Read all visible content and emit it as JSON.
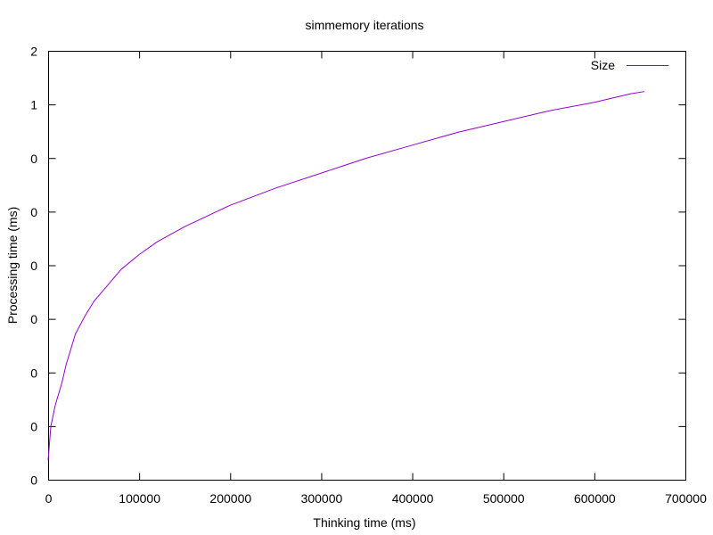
{
  "chart_data": {
    "type": "line",
    "title": "simmemory iterations",
    "xlabel": "Thinking time (ms)",
    "ylabel": "Processing time (ms)",
    "xlim": [
      0,
      700000
    ],
    "ylim": [
      0,
      2
    ],
    "grid": false,
    "legend_position": "top-right",
    "x_ticks": [
      "0",
      "100000",
      "200000",
      "300000",
      "400000",
      "500000",
      "600000",
      "700000"
    ],
    "y_ticks": [
      "0",
      "0",
      "0",
      "0",
      "0",
      "0",
      "0",
      "1",
      "2"
    ],
    "series": [
      {
        "name": "Size",
        "color": "#9400d3",
        "x": [
          0,
          3000,
          8000,
          15000,
          20000,
          30000,
          40000,
          50000,
          60000,
          80000,
          100000,
          120000,
          150000,
          200000,
          250000,
          300000,
          350000,
          400000,
          450000,
          500000,
          550000,
          600000,
          640000,
          655000
        ],
        "y": [
          0.09,
          0.25,
          0.35,
          0.45,
          0.54,
          0.68,
          0.76,
          0.83,
          0.88,
          0.98,
          1.05,
          1.11,
          1.18,
          1.28,
          1.36,
          1.43,
          1.5,
          1.56,
          1.62,
          1.67,
          1.72,
          1.76,
          1.8,
          1.81
        ]
      }
    ]
  }
}
